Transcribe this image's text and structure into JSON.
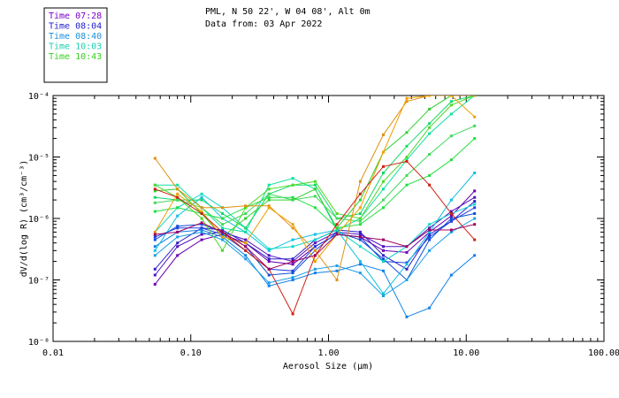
{
  "chart_data": {
    "type": "line",
    "title_lines": [
      "PML, N 50 22', W 04 08', Alt 0m",
      "Data from: 03 Apr 2022"
    ],
    "xlabel": "Aerosol Size (µm)",
    "ylabel": "dV/d(log R) (cm³/cm⁻³)",
    "x_scale": "log",
    "y_scale": "log",
    "xlim": [
      0.01,
      100
    ],
    "ylim": [
      1e-08,
      0.0001
    ],
    "x_ticks": [
      {
        "value": 0.01,
        "label": "0.01"
      },
      {
        "value": 0.1,
        "label": "0.10"
      },
      {
        "value": 1,
        "label": "1.00"
      },
      {
        "value": 10,
        "label": "10.00"
      },
      {
        "value": 100,
        "label": "100.00"
      }
    ],
    "y_ticks": [
      {
        "value": 1e-08,
        "label": "10⁻⁸"
      },
      {
        "value": 1e-07,
        "label": "10⁻⁷"
      },
      {
        "value": 1e-06,
        "label": "10⁻⁶"
      },
      {
        "value": 1e-05,
        "label": "10⁻⁵"
      },
      {
        "value": 0.0001,
        "label": "10⁻⁴"
      }
    ],
    "legend": [
      {
        "label": "Time 07:28",
        "color": "#7a00c8"
      },
      {
        "label": "Time 08:04",
        "color": "#2020d0"
      },
      {
        "label": "Time 08:40",
        "color": "#1890e0"
      },
      {
        "label": "Time 10:03",
        "color": "#18d0b0"
      },
      {
        "label": "Time 10:43",
        "color": "#38d020"
      }
    ],
    "x": [
      0.055,
      0.08,
      0.12,
      0.17,
      0.25,
      0.37,
      0.55,
      0.8,
      1.15,
      1.7,
      2.5,
      3.7,
      5.4,
      7.8,
      11.5
    ],
    "series": [
      {
        "name": "s01",
        "color": "#6a00b0",
        "values": [
          8.5e-08,
          2.5e-07,
          4.5e-07,
          5.5e-07,
          4e-07,
          2e-07,
          1.8e-07,
          3.5e-07,
          5.5e-07,
          5e-07,
          3e-07,
          2.8e-07,
          6e-07,
          1.1e-06,
          2.8e-06
        ]
      },
      {
        "name": "s02",
        "color": "#5010c0",
        "values": [
          1.2e-07,
          3.5e-07,
          5.5e-07,
          6e-07,
          4.5e-07,
          2.5e-07,
          2e-07,
          4e-07,
          6e-07,
          5.5e-07,
          3.5e-07,
          3.5e-07,
          7e-07,
          1.3e-06,
          2.2e-06
        ]
      },
      {
        "name": "s03",
        "color": "#3020c8",
        "values": [
          1.5e-07,
          4e-07,
          7e-07,
          6.5e-07,
          4e-07,
          2.2e-07,
          2.2e-07,
          4.5e-07,
          6.5e-07,
          6e-07,
          2.5e-07,
          1.5e-07,
          5.5e-07,
          9e-07,
          1.9e-06
        ]
      },
      {
        "name": "s04",
        "color": "#2040e0",
        "values": [
          5e-07,
          7e-07,
          7e-07,
          5.5e-07,
          3e-07,
          1.5e-07,
          1.4e-07,
          3.5e-07,
          5.5e-07,
          5e-07,
          2e-07,
          1.9e-07,
          5e-07,
          9e-07,
          1.5e-06
        ]
      },
      {
        "name": "s05",
        "color": "#1050d8",
        "values": [
          4.5e-07,
          7.5e-07,
          8e-07,
          6e-07,
          3.5e-07,
          1.2e-07,
          1.3e-07,
          3e-07,
          6e-07,
          4.5e-07,
          2.2e-07,
          1e-07,
          4.5e-07,
          1e-06,
          1.2e-06
        ]
      },
      {
        "name": "s06",
        "color": "#1080e8",
        "values": [
          3.5e-07,
          6e-07,
          6.5e-07,
          5e-07,
          2.5e-07,
          8e-08,
          1e-07,
          1.3e-07,
          1.4e-07,
          1.8e-07,
          1.4e-07,
          2.5e-08,
          3.5e-08,
          1.2e-07,
          2.5e-07
        ]
      },
      {
        "name": "s07",
        "color": "#18a0e8",
        "values": [
          2.5e-07,
          5e-07,
          6e-07,
          4.5e-07,
          2.2e-07,
          9e-08,
          1.1e-07,
          1.5e-07,
          1.7e-07,
          1.3e-07,
          5.5e-08,
          1e-07,
          3e-07,
          6e-07,
          1e-06
        ]
      },
      {
        "name": "s08",
        "color": "#10c0e0",
        "values": [
          3e-07,
          1.1e-06,
          2.2e-06,
          1e-06,
          6e-07,
          3e-07,
          4.5e-07,
          5.5e-07,
          6.5e-07,
          2e-07,
          6e-08,
          1.8e-07,
          6e-07,
          2e-06,
          5.5e-06
        ]
      },
      {
        "name": "s09",
        "color": "#10d8c8",
        "values": [
          6e-07,
          1.5e-06,
          2.5e-06,
          1.5e-06,
          7e-07,
          3.2e-07,
          3.5e-07,
          4.5e-07,
          6.5e-07,
          3.5e-07,
          2e-07,
          3.5e-07,
          8e-07,
          1.2e-06,
          1.7e-06
        ]
      },
      {
        "name": "s10",
        "color": "#10e0a0",
        "values": [
          3.5e-06,
          3.5e-06,
          1.5e-06,
          7e-07,
          6e-07,
          3.5e-06,
          4.5e-06,
          3e-06,
          6.5e-07,
          1e-06,
          3e-06,
          9e-06,
          2.4e-05,
          5e-05,
          0.0001
        ]
      },
      {
        "name": "s11",
        "color": "#10d868",
        "values": [
          2.2e-06,
          2e-06,
          2e-06,
          1.2e-06,
          7e-07,
          2.5e-06,
          3.5e-06,
          3.5e-06,
          1e-06,
          1.2e-06,
          5.5e-06,
          1.5e-05,
          3.5e-05,
          8e-05,
          0.0001
        ]
      },
      {
        "name": "s12",
        "color": "#20e040",
        "values": [
          1.3e-06,
          1.5e-06,
          1.2e-06,
          1e-06,
          1.5e-06,
          2.2e-06,
          2.2e-06,
          1.5e-06,
          7e-07,
          8e-07,
          1.5e-06,
          3.5e-06,
          5e-06,
          9e-06,
          2e-05
        ]
      },
      {
        "name": "s13",
        "color": "#30d030",
        "values": [
          2.8e-06,
          3e-06,
          1.2e-06,
          5e-07,
          1e-06,
          2e-06,
          2e-06,
          3e-06,
          7e-07,
          2e-06,
          1.2e-05,
          2.5e-05,
          6e-05,
          0.0001,
          0.0001
        ]
      },
      {
        "name": "s14",
        "color": "#50d828",
        "values": [
          3.5e-06,
          2.2e-06,
          1e-06,
          3e-07,
          1.5e-06,
          3e-06,
          3.5e-06,
          4e-06,
          1.2e-06,
          1e-06,
          4e-06,
          1e-05,
          3e-05,
          7e-05,
          0.0001
        ]
      },
      {
        "name": "s15",
        "color": "#40d858",
        "values": [
          1.8e-06,
          2e-06,
          1.5e-06,
          8e-07,
          1.2e-06,
          2.5e-06,
          2e-06,
          2.3e-06,
          1e-06,
          9e-07,
          2e-06,
          5e-06,
          1.1e-05,
          2.2e-05,
          3.2e-05
        ]
      },
      {
        "name": "s16",
        "color": "#e09010",
        "values": [
          9.5e-06,
          3e-06,
          1.5e-06,
          1.5e-06,
          1.6e-06,
          1.6e-06,
          7e-07,
          3e-07,
          1e-07,
          4e-06,
          2.3e-05,
          8e-05,
          0.0001,
          0.0001,
          0.0001
        ]
      },
      {
        "name": "s17",
        "color": "#f0a000",
        "values": [
          6e-07,
          2.5e-06,
          1.3e-06,
          5e-07,
          4e-07,
          1.5e-06,
          8e-07,
          2e-07,
          5.5e-07,
          1.5e-06,
          1.2e-05,
          9e-05,
          0.0001,
          0.0001,
          4.5e-05
        ]
      },
      {
        "name": "s18",
        "color": "#d02010",
        "values": [
          3e-06,
          2.2e-06,
          1.2e-06,
          6e-07,
          3e-07,
          1.5e-07,
          2.8e-08,
          2.5e-07,
          8e-07,
          2.5e-06,
          7e-06,
          8.5e-06,
          3.5e-06,
          1.2e-06,
          4.5e-07
        ]
      },
      {
        "name": "s19",
        "color": "#a00060",
        "values": [
          5.5e-07,
          6e-07,
          8.5e-07,
          6e-07,
          3.5e-07,
          1.5e-07,
          2e-07,
          2.5e-07,
          5.5e-07,
          5e-07,
          4.5e-07,
          3.5e-07,
          6.5e-07,
          6.5e-07,
          8e-07
        ]
      }
    ]
  }
}
